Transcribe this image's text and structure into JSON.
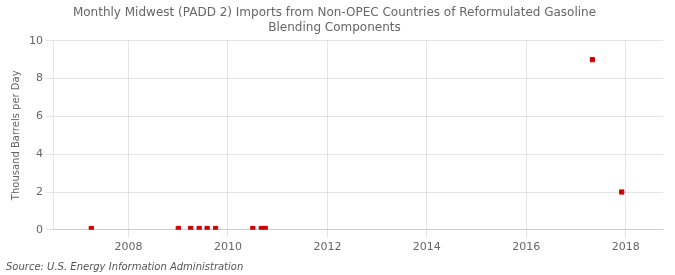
{
  "chart_data": {
    "type": "scatter",
    "title": "Monthly Midwest (PADD 2) Imports from Non-OPEC Countries of Reformulated Gasoline\nBlending Components",
    "ylabel": "Thousand Barrels per Day",
    "annotation": "Source: U.S. Energy Information Administration",
    "x": [
      2007.25,
      2009.0,
      2009.25,
      2009.42,
      2009.58,
      2009.75,
      2010.5,
      2010.67,
      2010.75,
      2017.33,
      2017.92
    ],
    "values": [
      0.07,
      0.07,
      0.07,
      0.07,
      0.07,
      0.07,
      0.07,
      0.07,
      0.07,
      9.0,
      2.0
    ],
    "color": "#cc0000",
    "marker": "square",
    "xlim": [
      2006.5,
      2018.75
    ],
    "xticks": [
      2008,
      2010,
      2012,
      2014,
      2016,
      2018
    ],
    "ylim": [
      0,
      10
    ],
    "yticks": [
      0,
      2,
      4,
      6,
      8,
      10
    ],
    "grid": true
  }
}
